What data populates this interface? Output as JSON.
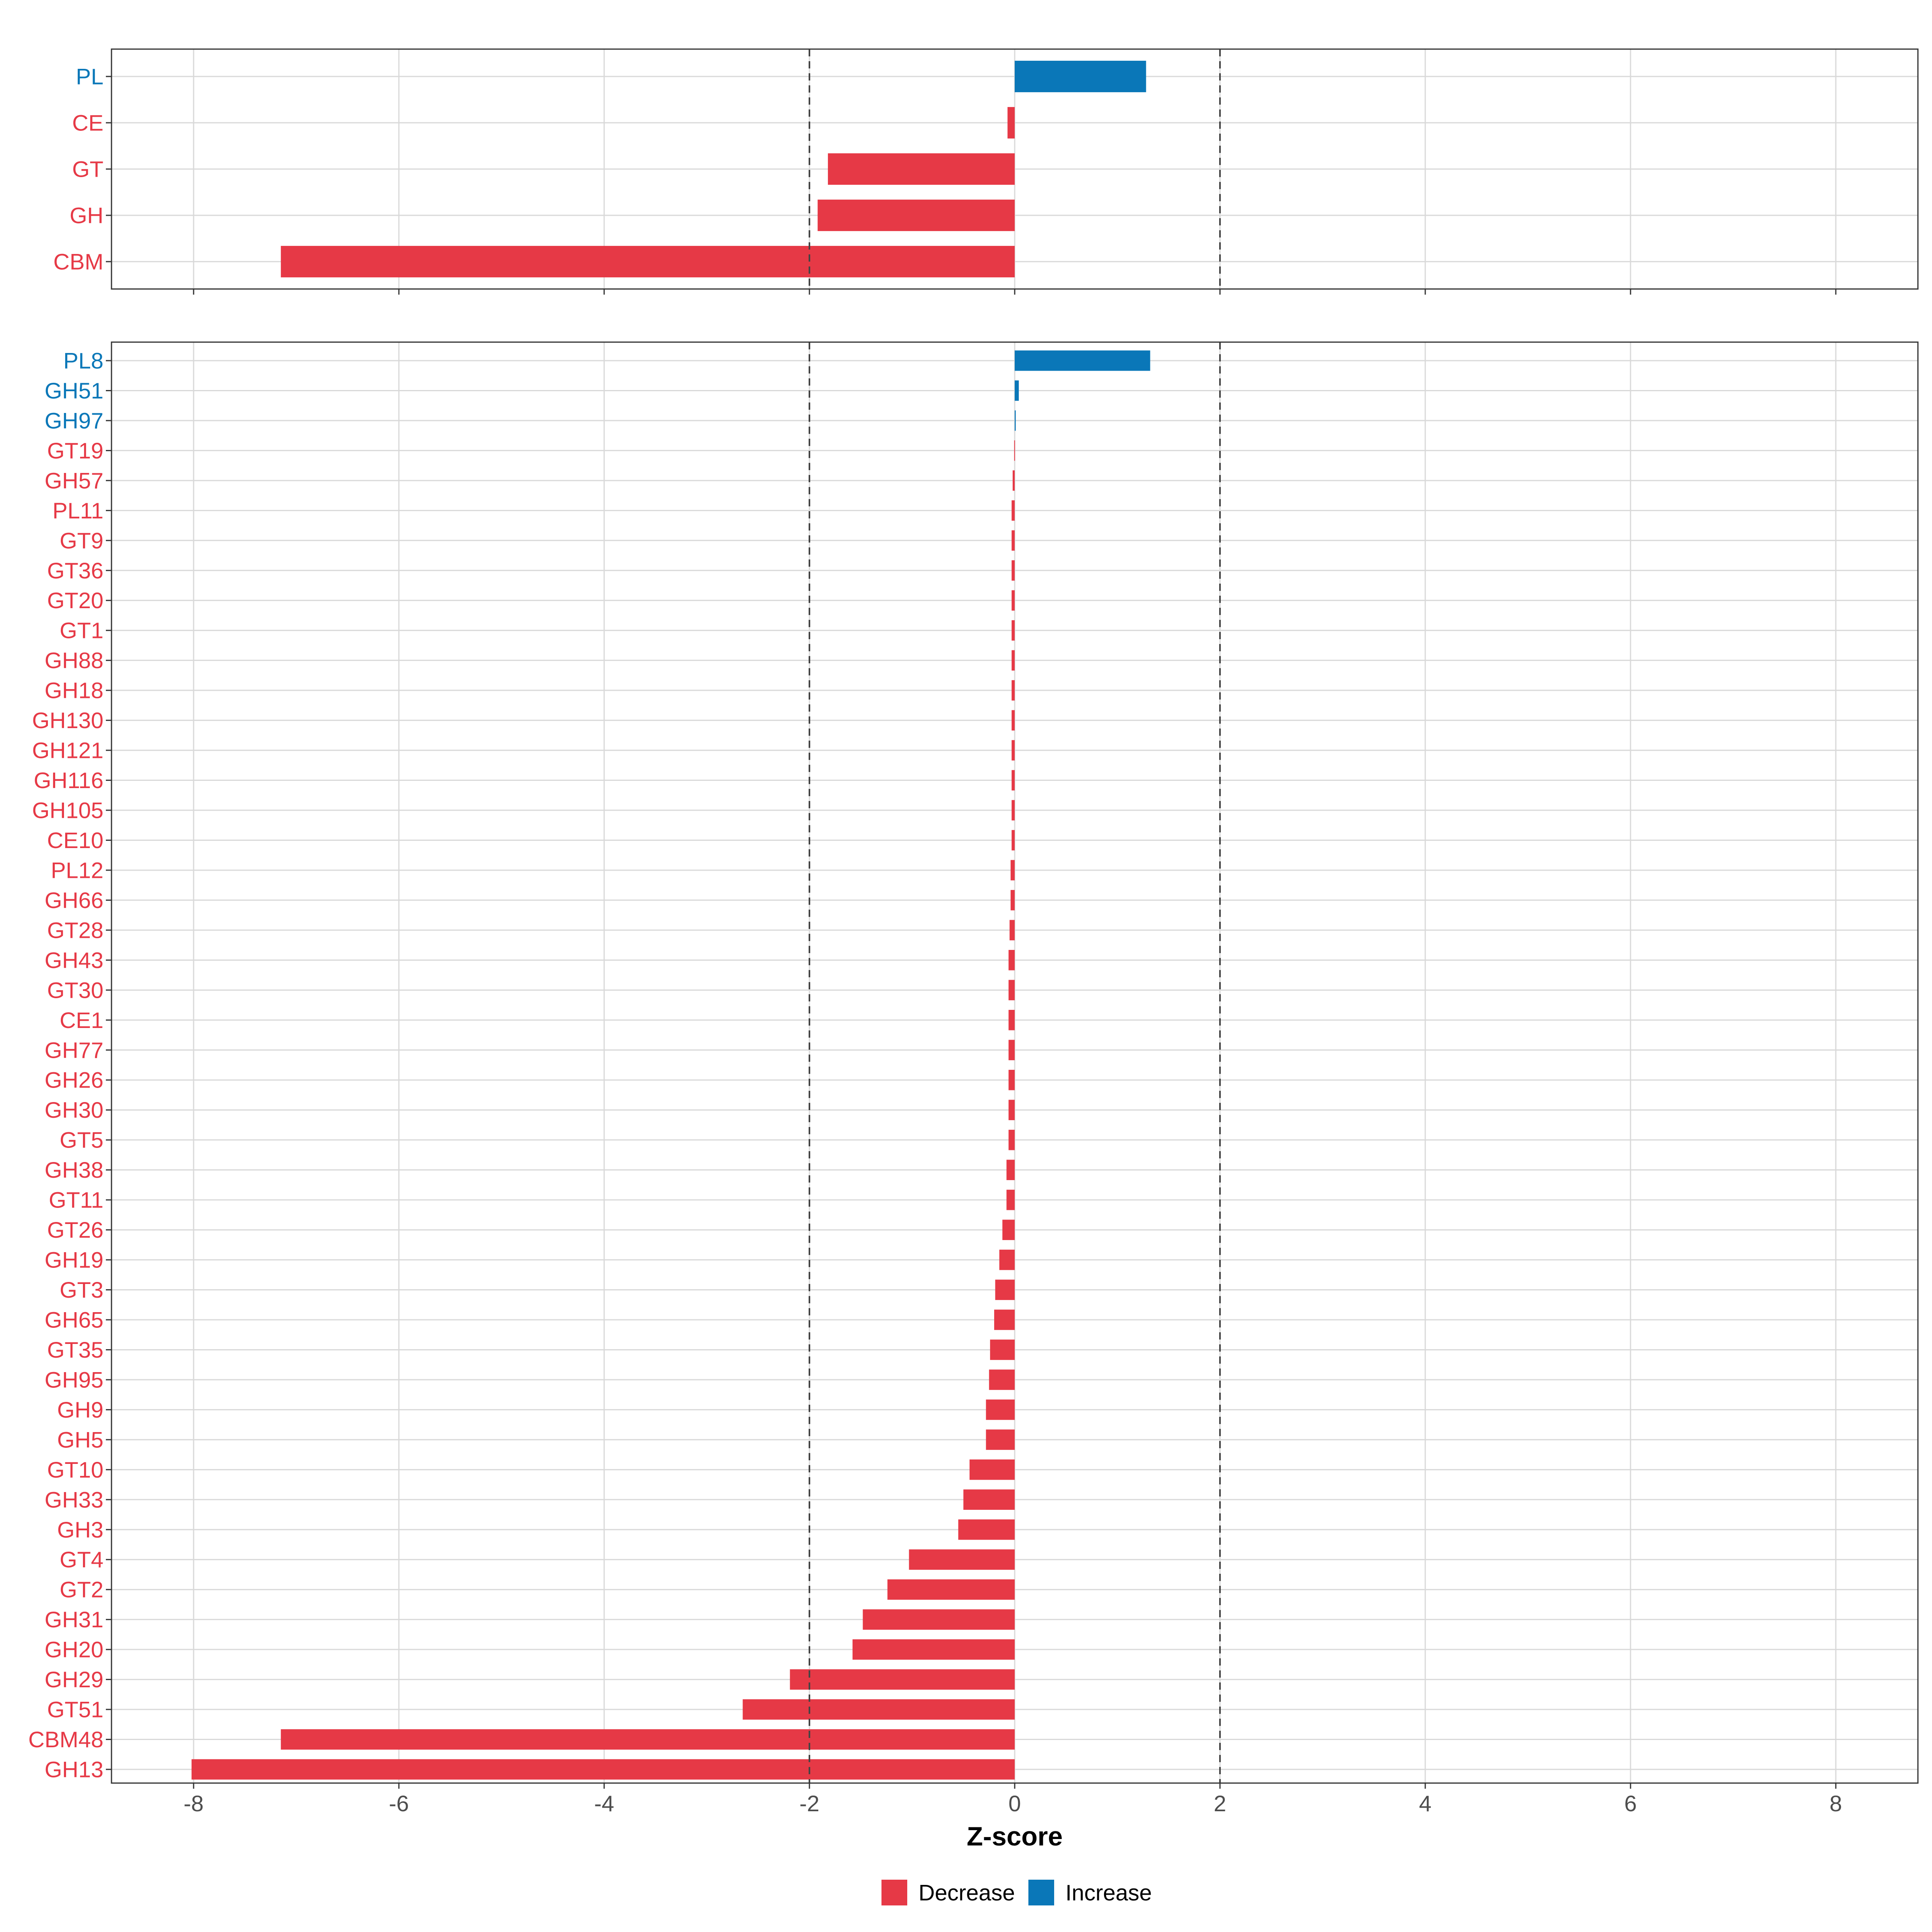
{
  "chart_data": {
    "type": "bar",
    "orientation": "horizontal",
    "xlabel": "Z-score",
    "xlim": [
      -8.8,
      8.8
    ],
    "xticks": [
      -8,
      -6,
      -4,
      -2,
      0,
      2,
      4,
      6,
      8
    ],
    "reference_lines": [
      -2,
      2
    ],
    "grid": true,
    "colors": {
      "Decrease": "#E63946",
      "Increase": "#0A77B8"
    },
    "legend": {
      "placement": "bottom",
      "entries": [
        {
          "label": "Decrease",
          "color": "#E63946"
        },
        {
          "label": "Increase",
          "color": "#0A77B8"
        }
      ]
    },
    "panels": [
      {
        "categories": [
          "PL",
          "CE",
          "GT",
          "GH",
          "CBM"
        ],
        "values": [
          1.28,
          -0.07,
          -1.82,
          -1.92,
          -7.15
        ],
        "direction": [
          "Increase",
          "Decrease",
          "Decrease",
          "Decrease",
          "Decrease"
        ]
      },
      {
        "categories": [
          "PL8",
          "GH51",
          "GH97",
          "GT19",
          "GH57",
          "PL11",
          "GT9",
          "GT36",
          "GT20",
          "GT1",
          "GH88",
          "GH18",
          "GH130",
          "GH121",
          "GH116",
          "GH105",
          "CE10",
          "PL12",
          "GH66",
          "GT28",
          "GH43",
          "GT30",
          "CE1",
          "GH77",
          "GH26",
          "GH30",
          "GT5",
          "GH38",
          "GT11",
          "GT26",
          "GH19",
          "GT3",
          "GH65",
          "GT35",
          "GH95",
          "GH9",
          "GH5",
          "GT10",
          "GH33",
          "GH3",
          "GT4",
          "GT2",
          "GH31",
          "GH20",
          "GH29",
          "GT51",
          "CBM48",
          "GH13"
        ],
        "values": [
          1.32,
          0.04,
          0.01,
          -0.005,
          -0.02,
          -0.03,
          -0.03,
          -0.03,
          -0.03,
          -0.03,
          -0.03,
          -0.03,
          -0.03,
          -0.03,
          -0.03,
          -0.03,
          -0.03,
          -0.04,
          -0.04,
          -0.05,
          -0.06,
          -0.06,
          -0.06,
          -0.06,
          -0.06,
          -0.06,
          -0.06,
          -0.08,
          -0.08,
          -0.12,
          -0.15,
          -0.19,
          -0.2,
          -0.24,
          -0.25,
          -0.28,
          -0.28,
          -0.44,
          -0.5,
          -0.55,
          -1.03,
          -1.24,
          -1.48,
          -1.58,
          -2.19,
          -2.65,
          -7.15,
          -8.02
        ],
        "direction": [
          "Increase",
          "Increase",
          "Increase",
          "Decrease",
          "Decrease",
          "Decrease",
          "Decrease",
          "Decrease",
          "Decrease",
          "Decrease",
          "Decrease",
          "Decrease",
          "Decrease",
          "Decrease",
          "Decrease",
          "Decrease",
          "Decrease",
          "Decrease",
          "Decrease",
          "Decrease",
          "Decrease",
          "Decrease",
          "Decrease",
          "Decrease",
          "Decrease",
          "Decrease",
          "Decrease",
          "Decrease",
          "Decrease",
          "Decrease",
          "Decrease",
          "Decrease",
          "Decrease",
          "Decrease",
          "Decrease",
          "Decrease",
          "Decrease",
          "Decrease",
          "Decrease",
          "Decrease",
          "Decrease",
          "Decrease",
          "Decrease",
          "Decrease",
          "Decrease",
          "Decrease",
          "Decrease",
          "Decrease"
        ]
      }
    ]
  }
}
